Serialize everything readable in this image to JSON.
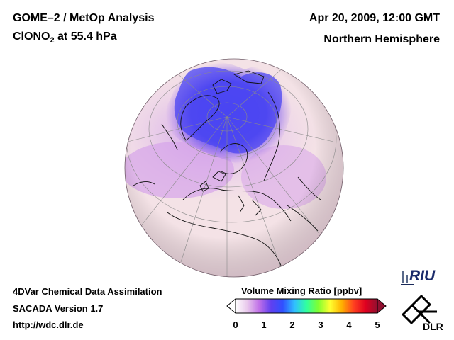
{
  "header": {
    "title_line1": "GOME–2 / MetOp Analysis",
    "species": "ClONO",
    "species_subscript": "2",
    "level_text": " at 55.4 hPa",
    "datetime": "Apr 20, 2009, 12:00 GMT",
    "region": "Northern Hemisphere"
  },
  "footer": {
    "line1": "4DVar Chemical Data Assimilation",
    "line2": "SACADA Version 1.7",
    "line3": "http://wdc.dlr.de"
  },
  "colorbar": {
    "title": "Volume Mixing Ratio [ppbv]",
    "ticks": [
      "0",
      "1",
      "2",
      "3",
      "4",
      "5"
    ],
    "range": [
      0,
      5
    ],
    "colors": [
      "#ffffff",
      "#e8c8ec",
      "#c070e8",
      "#6040f0",
      "#3050ff",
      "#30c0ff",
      "#30ffa0",
      "#80ff30",
      "#ffff30",
      "#ffb000",
      "#ff4020",
      "#e00020",
      "#901030"
    ]
  },
  "logos": {
    "riu": "RIU",
    "dlr": "DLR"
  },
  "colors": {
    "globe_background": "#f5e2e6",
    "high_value": "#4040f0",
    "mid_value": "#c088e8",
    "coastline": "#101010",
    "graticule": "#8a8a8a"
  }
}
